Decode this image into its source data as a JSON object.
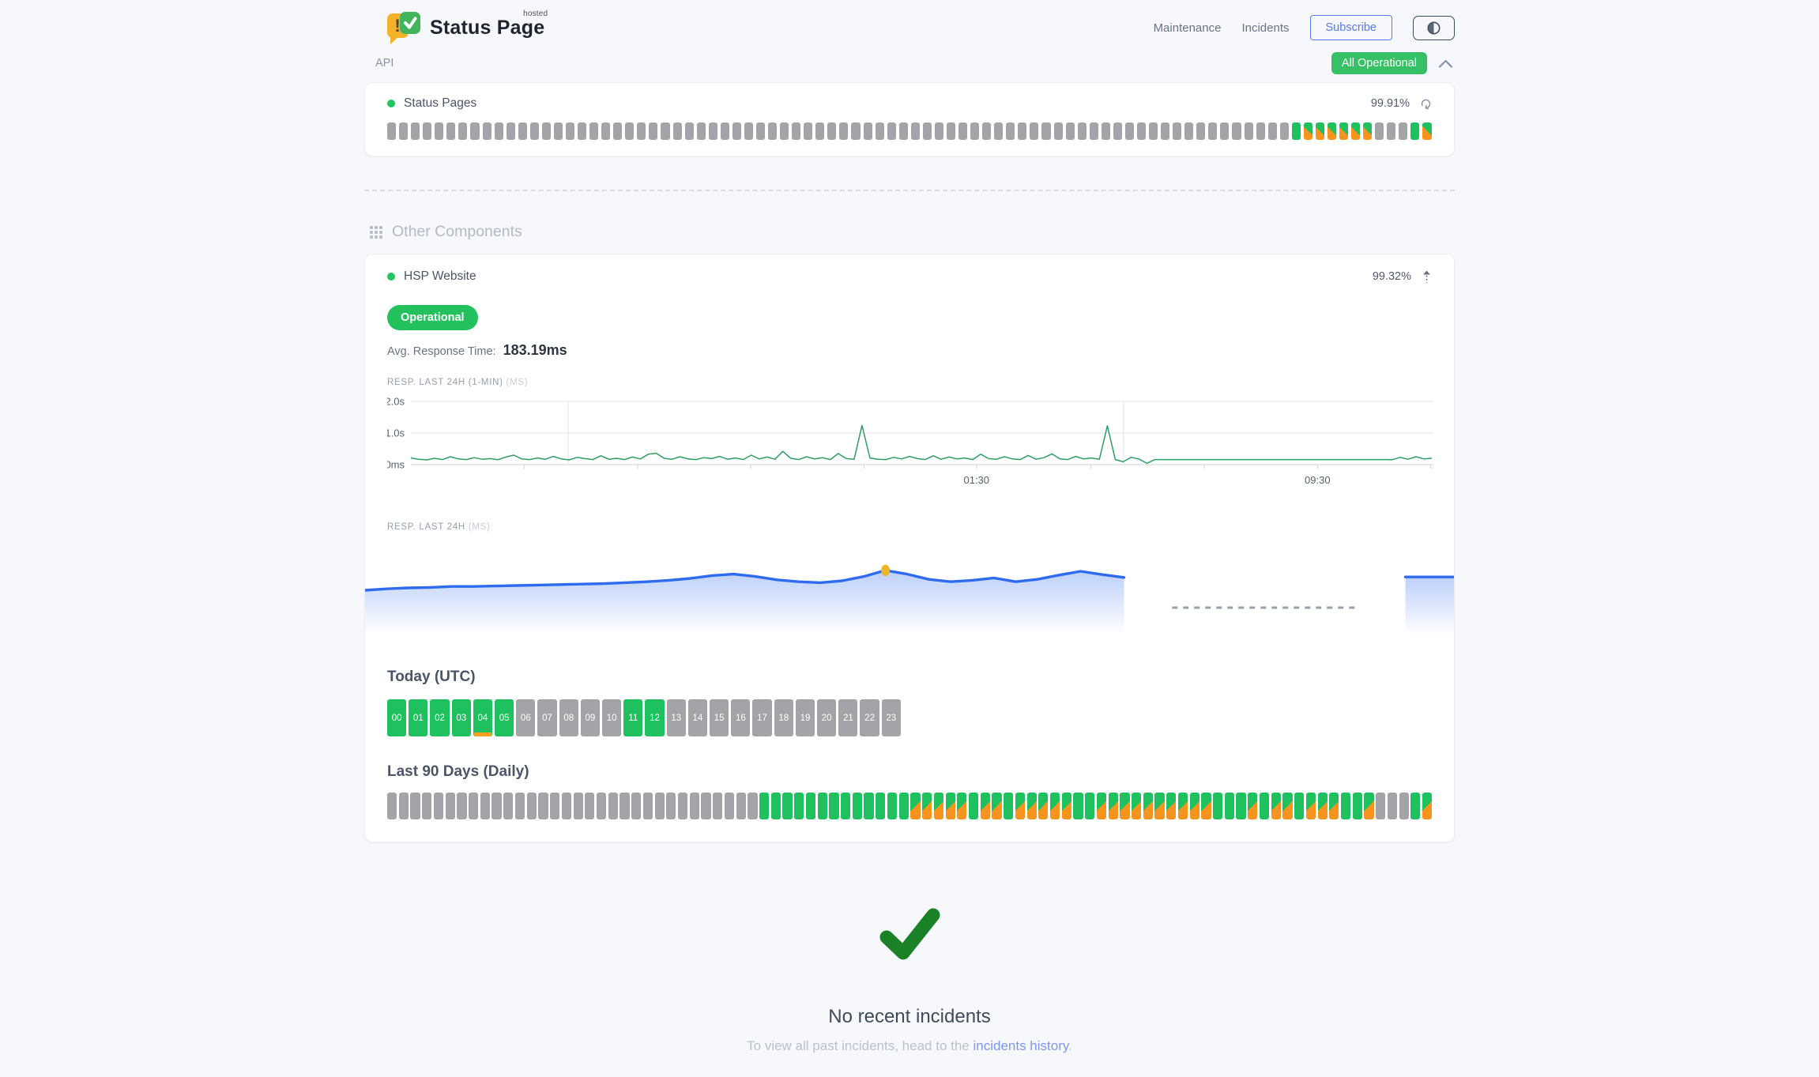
{
  "colors": {
    "green": "#1fc05e",
    "orange": "#f7941d",
    "gray_bar": "#a2a4a7",
    "badge_green": "#36c166",
    "chart_line_green": "#2f9e63",
    "chart_line_blue": "#2e6bef",
    "marker_yellow": "#f0b429",
    "link_blue": "#7c96f2",
    "accent_blue": "#5a78ee",
    "check_green": "#1b8126"
  },
  "header": {
    "brand": {
      "name": "Status Page",
      "superscript": "hosted"
    },
    "nav": {
      "maintenance": "Maintenance",
      "incidents": "Incidents",
      "subscribe": "Subscribe"
    },
    "status_badge": "All Operational"
  },
  "api_section": {
    "title": "API",
    "component": {
      "name": "Status Pages",
      "uptime": "99.91%"
    },
    "bars_legend": {
      "g": "no-data",
      "G": "operational",
      "S": "partial-outage"
    },
    "bars": "ggggggggggggggggggggggggggggggggggggggggggggggggggggggggggggggggggggggggggggGSSSSSSgggGS"
  },
  "other_components": {
    "title": "Other Components",
    "component": {
      "name": "HSP Website",
      "uptime": "99.32%",
      "status": "Operational",
      "avg_response_label": "Avg. Response Time:",
      "avg_response_value": "183.19ms"
    },
    "resp_1min_label": "RESP. LAST 24H (1-MIN)",
    "resp_1min_unit": "(MS)",
    "resp_24h_label": "RESP. LAST 24H",
    "resp_24h_unit": "(MS)",
    "today": {
      "title": "Today (UTC)",
      "hours_labels": [
        "00",
        "01",
        "02",
        "03",
        "04",
        "05",
        "06",
        "07",
        "08",
        "09",
        "10",
        "11",
        "12",
        "13",
        "14",
        "15",
        "16",
        "17",
        "18",
        "19",
        "20",
        "21",
        "22",
        "23"
      ],
      "green_hours": [
        0,
        1,
        2,
        3,
        4,
        5,
        11,
        12
      ],
      "partial_underline_hours": [
        4
      ]
    },
    "last90": {
      "title": "Last 90 Days (Daily)",
      "bars_legend": {
        "g": "no-data",
        "G": "operational",
        "S": "partial-outage"
      },
      "bars": "ggggggggggggggggggggggggggggggggGGGGGGGGGGGGGSSSSSGSSGSSSSSGGSSSSSSSSSSGGGSGSSGSSSGGSgggGS"
    }
  },
  "chart_data": [
    {
      "type": "line",
      "title": "RESP. LAST 24H (1-MIN) (MS)",
      "ylabel_ticks": [
        {
          "label": "2.0s",
          "ms": 2000
        },
        {
          "label": "1.0s",
          "ms": 1000
        },
        {
          "label": "0ms",
          "ms": 0
        }
      ],
      "ylim_ms": [
        0,
        2000
      ],
      "x_tick_labels": [
        {
          "label": "01:30",
          "f": 0.554
        },
        {
          "label": "09:30",
          "f": 0.888
        }
      ],
      "v_gridlines_f": [
        0.154,
        0.698
      ],
      "axis_ticks_f": [
        0.111,
        0.222,
        0.333,
        0.444,
        0.554,
        0.666,
        0.777,
        0.888,
        0.999
      ],
      "grid": true,
      "values_ms": [
        210,
        170,
        150,
        200,
        160,
        250,
        180,
        160,
        220,
        170,
        190,
        155,
        240,
        300,
        180,
        160,
        210,
        170,
        260,
        180,
        150,
        230,
        190,
        160,
        280,
        170,
        200,
        160,
        240,
        180,
        330,
        360,
        200,
        170,
        250,
        180,
        160,
        220,
        190,
        260,
        170,
        210,
        160,
        300,
        180,
        240,
        170,
        420,
        200,
        160,
        250,
        180,
        220,
        160,
        350,
        190,
        170,
        1240,
        210,
        170,
        160,
        230,
        180,
        260,
        190,
        160,
        280,
        170,
        240,
        180,
        210,
        160,
        330,
        190,
        170,
        250,
        180,
        160,
        290,
        170,
        220,
        340,
        180,
        160,
        260,
        180,
        210,
        170,
        1230,
        160,
        90,
        230,
        180,
        40,
        160,
        160,
        160,
        160,
        160,
        160,
        160,
        160,
        160,
        160,
        160,
        160,
        160,
        160,
        160,
        160,
        160,
        160,
        160,
        160,
        160,
        160,
        160,
        160,
        160,
        160,
        160,
        160,
        160,
        160,
        155,
        230,
        170,
        250,
        180,
        200
      ]
    },
    {
      "type": "area",
      "title": "RESP. LAST 24H (MS)",
      "value_range_ms": [
        150,
        200
      ],
      "segments": [
        {
          "kind": "data",
          "f_start": 0,
          "f_end": 0.696,
          "values_ms": [
            150,
            153,
            155,
            156,
            158,
            158,
            159,
            160,
            161,
            162,
            163,
            164,
            166,
            168,
            171,
            175,
            181,
            184,
            179,
            172,
            168,
            166,
            170,
            179,
            192,
            184,
            173,
            168,
            171,
            176,
            168,
            173,
            182,
            190,
            183,
            177
          ]
        },
        {
          "kind": "no_data_dashed",
          "f_start": 0.74,
          "f_end": 0.909
        },
        {
          "kind": "data",
          "f_start": 0.954,
          "f_end": 1.0,
          "values_ms": [
            178,
            178,
            178
          ]
        }
      ],
      "marker": {
        "segment_index": 0,
        "point_index": 24,
        "color": "#f0b429"
      }
    }
  ],
  "incidents": {
    "title": "No recent incidents",
    "prefix": "To view all past incidents, head to the ",
    "link_text": "incidents history",
    "suffix": "."
  }
}
